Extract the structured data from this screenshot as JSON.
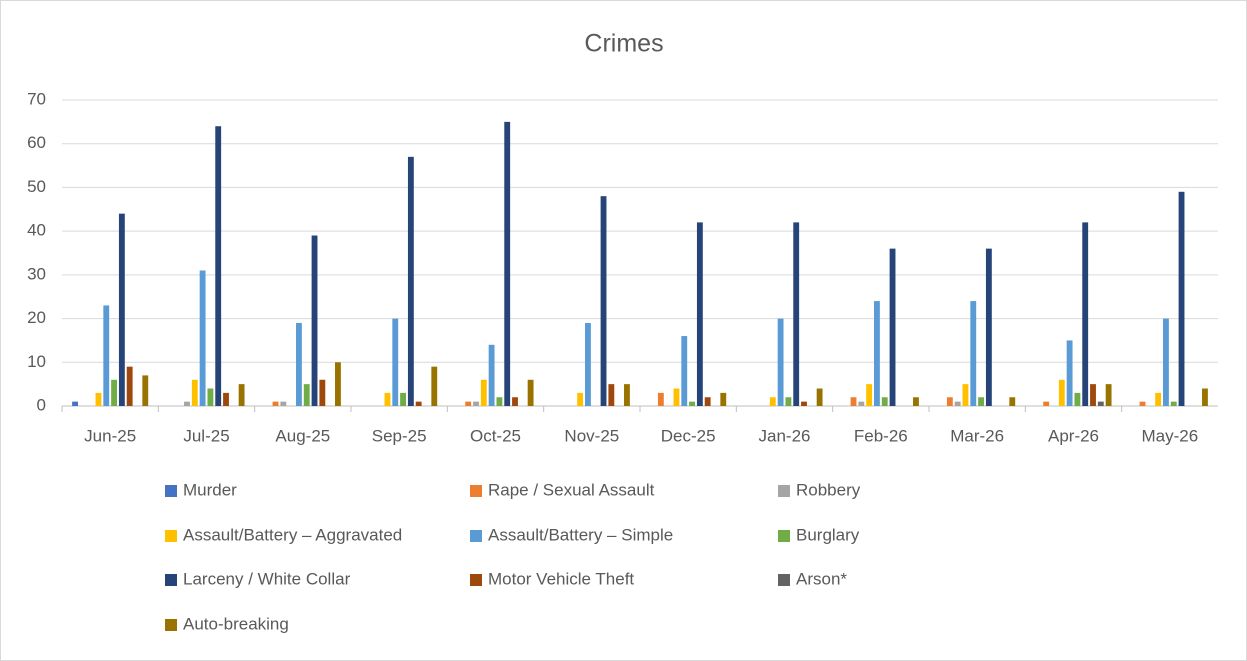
{
  "chart_data": {
    "type": "bar",
    "title": "Crimes",
    "categories": [
      "Jun-25",
      "Jul-25",
      "Aug-25",
      "Sep-25",
      "Oct-25",
      "Nov-25",
      "Dec-25",
      "Jan-26",
      "Feb-26",
      "Mar-26",
      "Apr-26",
      "May-26"
    ],
    "series": [
      {
        "name": "Murder",
        "color": "#4472c4",
        "values": [
          1,
          0,
          0,
          0,
          0,
          0,
          0,
          0,
          0,
          0,
          0,
          0
        ]
      },
      {
        "name": "Rape / Sexual Assault",
        "color": "#ed7d31",
        "values": [
          0,
          0,
          1,
          0,
          1,
          0,
          3,
          0,
          2,
          2,
          1,
          1
        ]
      },
      {
        "name": "Robbery",
        "color": "#a5a5a5",
        "values": [
          0,
          1,
          1,
          0,
          1,
          0,
          0,
          0,
          1,
          1,
          0,
          0
        ]
      },
      {
        "name": "Assault/Battery – Aggravated",
        "color": "#ffc000",
        "values": [
          3,
          6,
          0,
          3,
          6,
          3,
          4,
          2,
          5,
          5,
          6,
          3
        ]
      },
      {
        "name": "Assault/Battery – Simple",
        "color": "#5b9bd5",
        "values": [
          23,
          31,
          19,
          20,
          14,
          19,
          16,
          20,
          24,
          24,
          15,
          20
        ]
      },
      {
        "name": "Burglary",
        "color": "#70ad47",
        "values": [
          6,
          4,
          5,
          3,
          2,
          0,
          1,
          2,
          2,
          2,
          3,
          1
        ]
      },
      {
        "name": "Larceny / White Collar",
        "color": "#264478",
        "values": [
          44,
          64,
          39,
          57,
          65,
          48,
          42,
          42,
          36,
          36,
          42,
          49
        ]
      },
      {
        "name": "Motor Vehicle Theft",
        "color": "#9e480e",
        "values": [
          9,
          3,
          6,
          1,
          2,
          5,
          2,
          1,
          0,
          0,
          5,
          0
        ]
      },
      {
        "name": "Arson*",
        "color": "#636363",
        "values": [
          0,
          0,
          0,
          0,
          0,
          0,
          0,
          0,
          0,
          0,
          1,
          0
        ]
      },
      {
        "name": "Auto-breaking",
        "color": "#997300",
        "values": [
          7,
          5,
          10,
          9,
          6,
          5,
          3,
          4,
          2,
          2,
          5,
          4
        ]
      }
    ],
    "ylim": [
      0,
      70
    ],
    "yticks": [
      0,
      10,
      20,
      30,
      40,
      50,
      60,
      70
    ],
    "grid": true,
    "legend": "bottom"
  }
}
